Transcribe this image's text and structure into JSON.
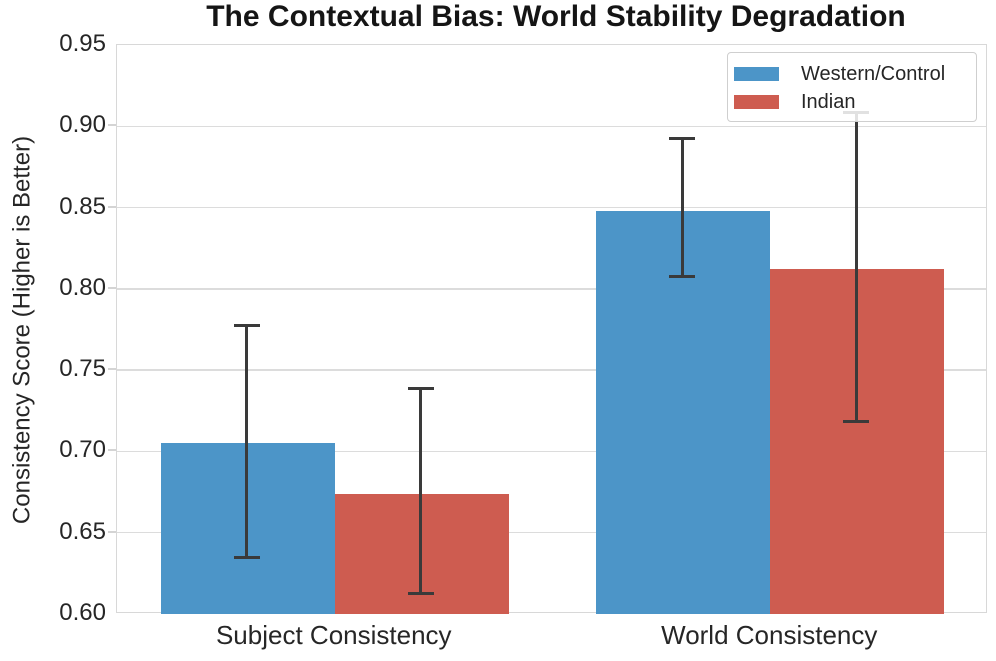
{
  "title": "The Contextual Bias: World Stability Degradation",
  "chart_data": {
    "type": "bar",
    "title": "The Contextual Bias: World Stability Degradation",
    "xlabel": "",
    "ylabel": "Consistency Score (Higher is Better)",
    "categories": [
      "Subject Consistency",
      "World Consistency"
    ],
    "series": [
      {
        "name": "Western/Control",
        "color": "#4C95C8",
        "values": [
          0.705,
          0.848
        ],
        "error_low": [
          0.634,
          0.807
        ],
        "error_high": [
          0.777,
          0.892
        ]
      },
      {
        "name": "Indian",
        "color": "#CE5C50",
        "values": [
          0.674,
          0.812
        ],
        "error_low": [
          0.612,
          0.718
        ],
        "error_high": [
          0.738,
          0.908
        ]
      }
    ],
    "ylim": [
      0.6,
      0.95
    ],
    "yticks": [
      0.6,
      0.65,
      0.7,
      0.75,
      0.8,
      0.85,
      0.9,
      0.95
    ],
    "ytick_format_decimals": 2,
    "grid": true,
    "grid_color": "#dcdcdc",
    "errorbar_color": "#3a3a3a",
    "legend_position": "upper right"
  }
}
